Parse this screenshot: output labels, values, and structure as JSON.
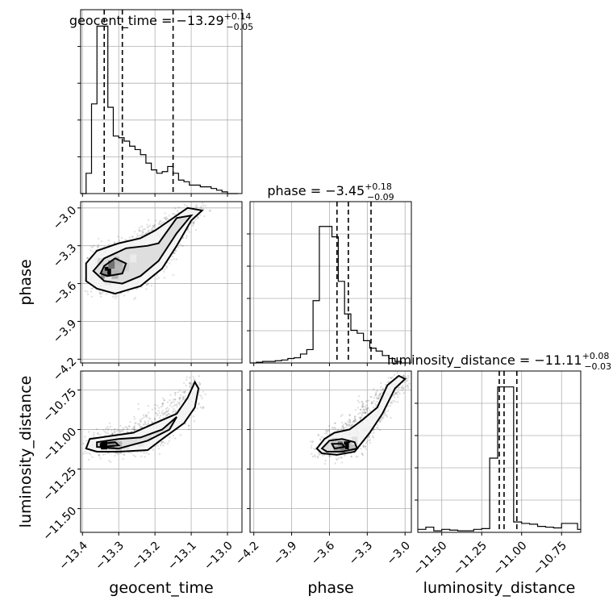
{
  "chart_data": {
    "type": "corner",
    "parameters": [
      "geocent_time",
      "phase",
      "luminosity_distance"
    ],
    "titles": [
      {
        "param": "geocent_time",
        "prefix": "geocent_time = ",
        "value": "−13.29",
        "upper": "+0.14",
        "lower": "−0.05"
      },
      {
        "param": "phase",
        "prefix": "phase = ",
        "value": "−3.45",
        "upper": "+0.18",
        "lower": "−0.09"
      },
      {
        "param": "luminosity_distance",
        "prefix": "luminosity_distance = ",
        "value": "−11.11",
        "upper": "+0.08",
        "lower": "−0.03"
      }
    ],
    "axis_labels": {
      "geocent_time": "geocent_time",
      "phase": "phase",
      "luminosity_distance": "luminosity_distance"
    },
    "ranges": {
      "geocent_time": [
        -13.405,
        -12.96
      ],
      "phase": [
        -4.23,
        -2.95
      ],
      "luminosity_distance": [
        -11.65,
        -10.63
      ]
    },
    "ticks": {
      "geocent_time": {
        "values": [
          -13.4,
          -13.3,
          -13.2,
          -13.1,
          -13.0
        ],
        "labels": [
          "−13.4",
          "−13.3",
          "−13.2",
          "−13.1",
          "−13.0"
        ]
      },
      "phase": {
        "values": [
          -4.2,
          -3.9,
          -3.6,
          -3.3,
          -3.0
        ],
        "labels": [
          "−4.2",
          "−3.9",
          "−3.6",
          "−3.3",
          "−3.0"
        ]
      },
      "luminosity_distance": {
        "values": [
          -11.5,
          -11.25,
          -11.0,
          -10.75
        ],
        "labels": [
          "−11.50",
          "−11.25",
          "−11.00",
          "−10.75"
        ]
      }
    },
    "quantiles": {
      "geocent_time": [
        -13.34,
        -13.29,
        -13.15
      ],
      "phase": [
        -3.54,
        -3.45,
        -3.27
      ],
      "luminosity_distance": [
        -11.14,
        -11.11,
        -11.03
      ]
    },
    "histograms": {
      "geocent_time": {
        "edges": [
          -13.405,
          -13.39,
          -13.375,
          -13.36,
          -13.345,
          -13.33,
          -13.315,
          -13.3,
          -13.285,
          -13.27,
          -13.255,
          -13.24,
          -13.225,
          -13.21,
          -13.195,
          -13.18,
          -13.165,
          -13.15,
          -13.135,
          -13.12,
          -13.105,
          -13.09,
          -13.075,
          -13.06,
          -13.045,
          -13.03,
          -13.015,
          -13.0,
          -12.985,
          -12.97
        ],
        "counts": [
          0,
          0.12,
          0.53,
          0.99,
          0.99,
          0.51,
          0.34,
          0.33,
          0.31,
          0.28,
          0.26,
          0.23,
          0.18,
          0.14,
          0.12,
          0.13,
          0.16,
          0.12,
          0.08,
          0.07,
          0.05,
          0.05,
          0.04,
          0.04,
          0.03,
          0.02,
          0.01,
          0,
          0
        ]
      },
      "phase": {
        "edges": [
          -4.23,
          -4.18,
          -4.13,
          -4.08,
          -4.03,
          -3.98,
          -3.93,
          -3.88,
          -3.83,
          -3.78,
          -3.73,
          -3.68,
          -3.63,
          -3.58,
          -3.53,
          -3.48,
          -3.43,
          -3.38,
          -3.33,
          -3.28,
          -3.23,
          -3.18,
          -3.13,
          -3.08,
          -3.03,
          -2.98
        ],
        "counts": [
          0,
          0.005,
          0.01,
          0.01,
          0.015,
          0.02,
          0.03,
          0.035,
          0.06,
          0.09,
          0.42,
          0.92,
          0.92,
          0.85,
          0.55,
          0.33,
          0.22,
          0.2,
          0.15,
          0.1,
          0.08,
          0.05,
          0.03,
          0.01,
          0
        ]
      },
      "luminosity_distance": {
        "edges": [
          -11.65,
          -11.6,
          -11.55,
          -11.5,
          -11.45,
          -11.4,
          -11.35,
          -11.3,
          -11.25,
          -11.2,
          -11.15,
          -11.1,
          -11.05,
          -11.0,
          -10.95,
          -10.9,
          -10.85,
          -10.8,
          -10.75,
          -10.7,
          -10.65,
          -10.63
        ],
        "counts": [
          0.02,
          0.035,
          0.01,
          0.02,
          0.015,
          0.01,
          0.01,
          0.02,
          0.025,
          0.5,
          0.98,
          0.98,
          0.07,
          0.06,
          0.055,
          0.04,
          0.035,
          0.03,
          0.06,
          0.06,
          0.02
        ]
      }
    },
    "contours": [
      {
        "x": "geocent_time",
        "y": "phase",
        "levels": [
          [
            [
              -13.36,
              -3.64
            ],
            [
              -13.31,
              -3.68
            ],
            [
              -13.24,
              -3.62
            ],
            [
              -13.18,
              -3.48
            ],
            [
              -13.14,
              -3.3
            ],
            [
              -13.1,
              -3.1
            ],
            [
              -13.07,
              -3.02
            ],
            [
              -13.11,
              -3.0
            ],
            [
              -13.16,
              -3.1
            ],
            [
              -13.2,
              -3.18
            ],
            [
              -13.24,
              -3.24
            ],
            [
              -13.3,
              -3.28
            ],
            [
              -13.36,
              -3.34
            ],
            [
              -13.39,
              -3.44
            ],
            [
              -13.39,
              -3.58
            ],
            [
              -13.36,
              -3.64
            ]
          ],
          [
            [
              -13.34,
              -3.58
            ],
            [
              -13.29,
              -3.6
            ],
            [
              -13.24,
              -3.54
            ],
            [
              -13.19,
              -3.42
            ],
            [
              -13.14,
              -3.2
            ],
            [
              -13.1,
              -3.06
            ],
            [
              -13.14,
              -3.08
            ],
            [
              -13.19,
              -3.28
            ],
            [
              -13.22,
              -3.3
            ],
            [
              -13.28,
              -3.32
            ],
            [
              -13.34,
              -3.4
            ],
            [
              -13.37,
              -3.5
            ],
            [
              -13.34,
              -3.58
            ]
          ],
          [
            [
              -13.33,
              -3.54
            ],
            [
              -13.29,
              -3.52
            ],
            [
              -13.28,
              -3.44
            ],
            [
              -13.31,
              -3.4
            ],
            [
              -13.34,
              -3.46
            ],
            [
              -13.35,
              -3.52
            ],
            [
              -13.33,
              -3.54
            ]
          ]
        ],
        "density": [
          [
            -13.33,
            -3.5,
            1.0
          ],
          [
            -13.32,
            -3.45,
            0.55
          ],
          [
            -13.34,
            -3.53,
            0.45
          ],
          [
            -13.31,
            -3.53,
            0.3
          ],
          [
            -13.3,
            -3.42,
            0.3
          ],
          [
            -13.28,
            -3.47,
            0.18
          ],
          [
            -13.35,
            -3.43,
            0.15
          ],
          [
            -13.29,
            -3.38,
            0.12
          ],
          [
            -13.26,
            -3.4,
            0.08
          ],
          [
            -13.33,
            -3.58,
            0.1
          ]
        ]
      },
      {
        "x": "geocent_time",
        "y": "luminosity_distance",
        "levels": [
          [
            [
              -13.38,
              -11.06
            ],
            [
              -13.32,
              -11.04
            ],
            [
              -13.26,
              -11.02
            ],
            [
              -13.2,
              -10.96
            ],
            [
              -13.14,
              -10.9
            ],
            [
              -13.11,
              -10.8
            ],
            [
              -13.09,
              -10.7
            ],
            [
              -13.08,
              -10.74
            ],
            [
              -13.09,
              -10.86
            ],
            [
              -13.12,
              -10.96
            ],
            [
              -13.18,
              -11.06
            ],
            [
              -13.22,
              -11.13
            ],
            [
              -13.3,
              -11.14
            ],
            [
              -13.36,
              -11.14
            ],
            [
              -13.39,
              -11.12
            ],
            [
              -13.38,
              -11.06
            ]
          ],
          [
            [
              -13.36,
              -11.08
            ],
            [
              -13.3,
              -11.06
            ],
            [
              -13.24,
              -11.05
            ],
            [
              -13.18,
              -11.0
            ],
            [
              -13.14,
              -10.92
            ],
            [
              -13.16,
              -11.0
            ],
            [
              -13.22,
              -11.07
            ],
            [
              -13.3,
              -11.12
            ],
            [
              -13.36,
              -11.11
            ],
            [
              -13.36,
              -11.08
            ]
          ],
          [
            [
              -13.35,
              -11.09
            ],
            [
              -13.31,
              -11.08
            ],
            [
              -13.3,
              -11.1
            ],
            [
              -13.35,
              -11.11
            ],
            [
              -13.35,
              -11.09
            ]
          ]
        ],
        "density": [
          [
            -13.34,
            -11.1,
            1.0
          ],
          [
            -13.32,
            -11.1,
            0.45
          ],
          [
            -13.3,
            -11.1,
            0.3
          ],
          [
            -13.3,
            -11.13,
            0.2
          ],
          [
            -13.28,
            -11.1,
            0.12
          ],
          [
            -13.24,
            -11.08,
            0.1
          ],
          [
            -13.2,
            -11.06,
            0.06
          ]
        ]
      },
      {
        "x": "phase",
        "y": "luminosity_distance",
        "levels": [
          [
            [
              -3.7,
              -11.12
            ],
            [
              -3.64,
              -11.06
            ],
            [
              -3.56,
              -11.02
            ],
            [
              -3.44,
              -11.0
            ],
            [
              -3.34,
              -10.94
            ],
            [
              -3.22,
              -10.86
            ],
            [
              -3.14,
              -10.72
            ],
            [
              -3.05,
              -10.66
            ],
            [
              -3.0,
              -10.68
            ],
            [
              -3.08,
              -10.74
            ],
            [
              -3.18,
              -10.9
            ],
            [
              -3.28,
              -11.02
            ],
            [
              -3.34,
              -11.08
            ],
            [
              -3.4,
              -11.14
            ],
            [
              -3.54,
              -11.16
            ],
            [
              -3.66,
              -11.15
            ],
            [
              -3.7,
              -11.12
            ]
          ],
          [
            [
              -3.66,
              -11.12
            ],
            [
              -3.6,
              -11.07
            ],
            [
              -3.5,
              -11.06
            ],
            [
              -3.4,
              -11.08
            ],
            [
              -3.38,
              -11.12
            ],
            [
              -3.5,
              -11.14
            ],
            [
              -3.62,
              -11.14
            ],
            [
              -3.66,
              -11.12
            ]
          ],
          [
            [
              -3.58,
              -11.09
            ],
            [
              -3.5,
              -11.09
            ],
            [
              -3.48,
              -11.11
            ],
            [
              -3.56,
              -11.12
            ],
            [
              -3.58,
              -11.09
            ]
          ]
        ],
        "density": [
          [
            -3.46,
            -11.1,
            1.0
          ],
          [
            -3.52,
            -11.1,
            0.6
          ],
          [
            -3.5,
            -11.12,
            0.5
          ],
          [
            -3.54,
            -11.12,
            0.35
          ],
          [
            -3.42,
            -11.11,
            0.25
          ],
          [
            -3.56,
            -11.08,
            0.2
          ],
          [
            -3.4,
            -11.07,
            0.12
          ]
        ]
      }
    ],
    "grid": true
  }
}
